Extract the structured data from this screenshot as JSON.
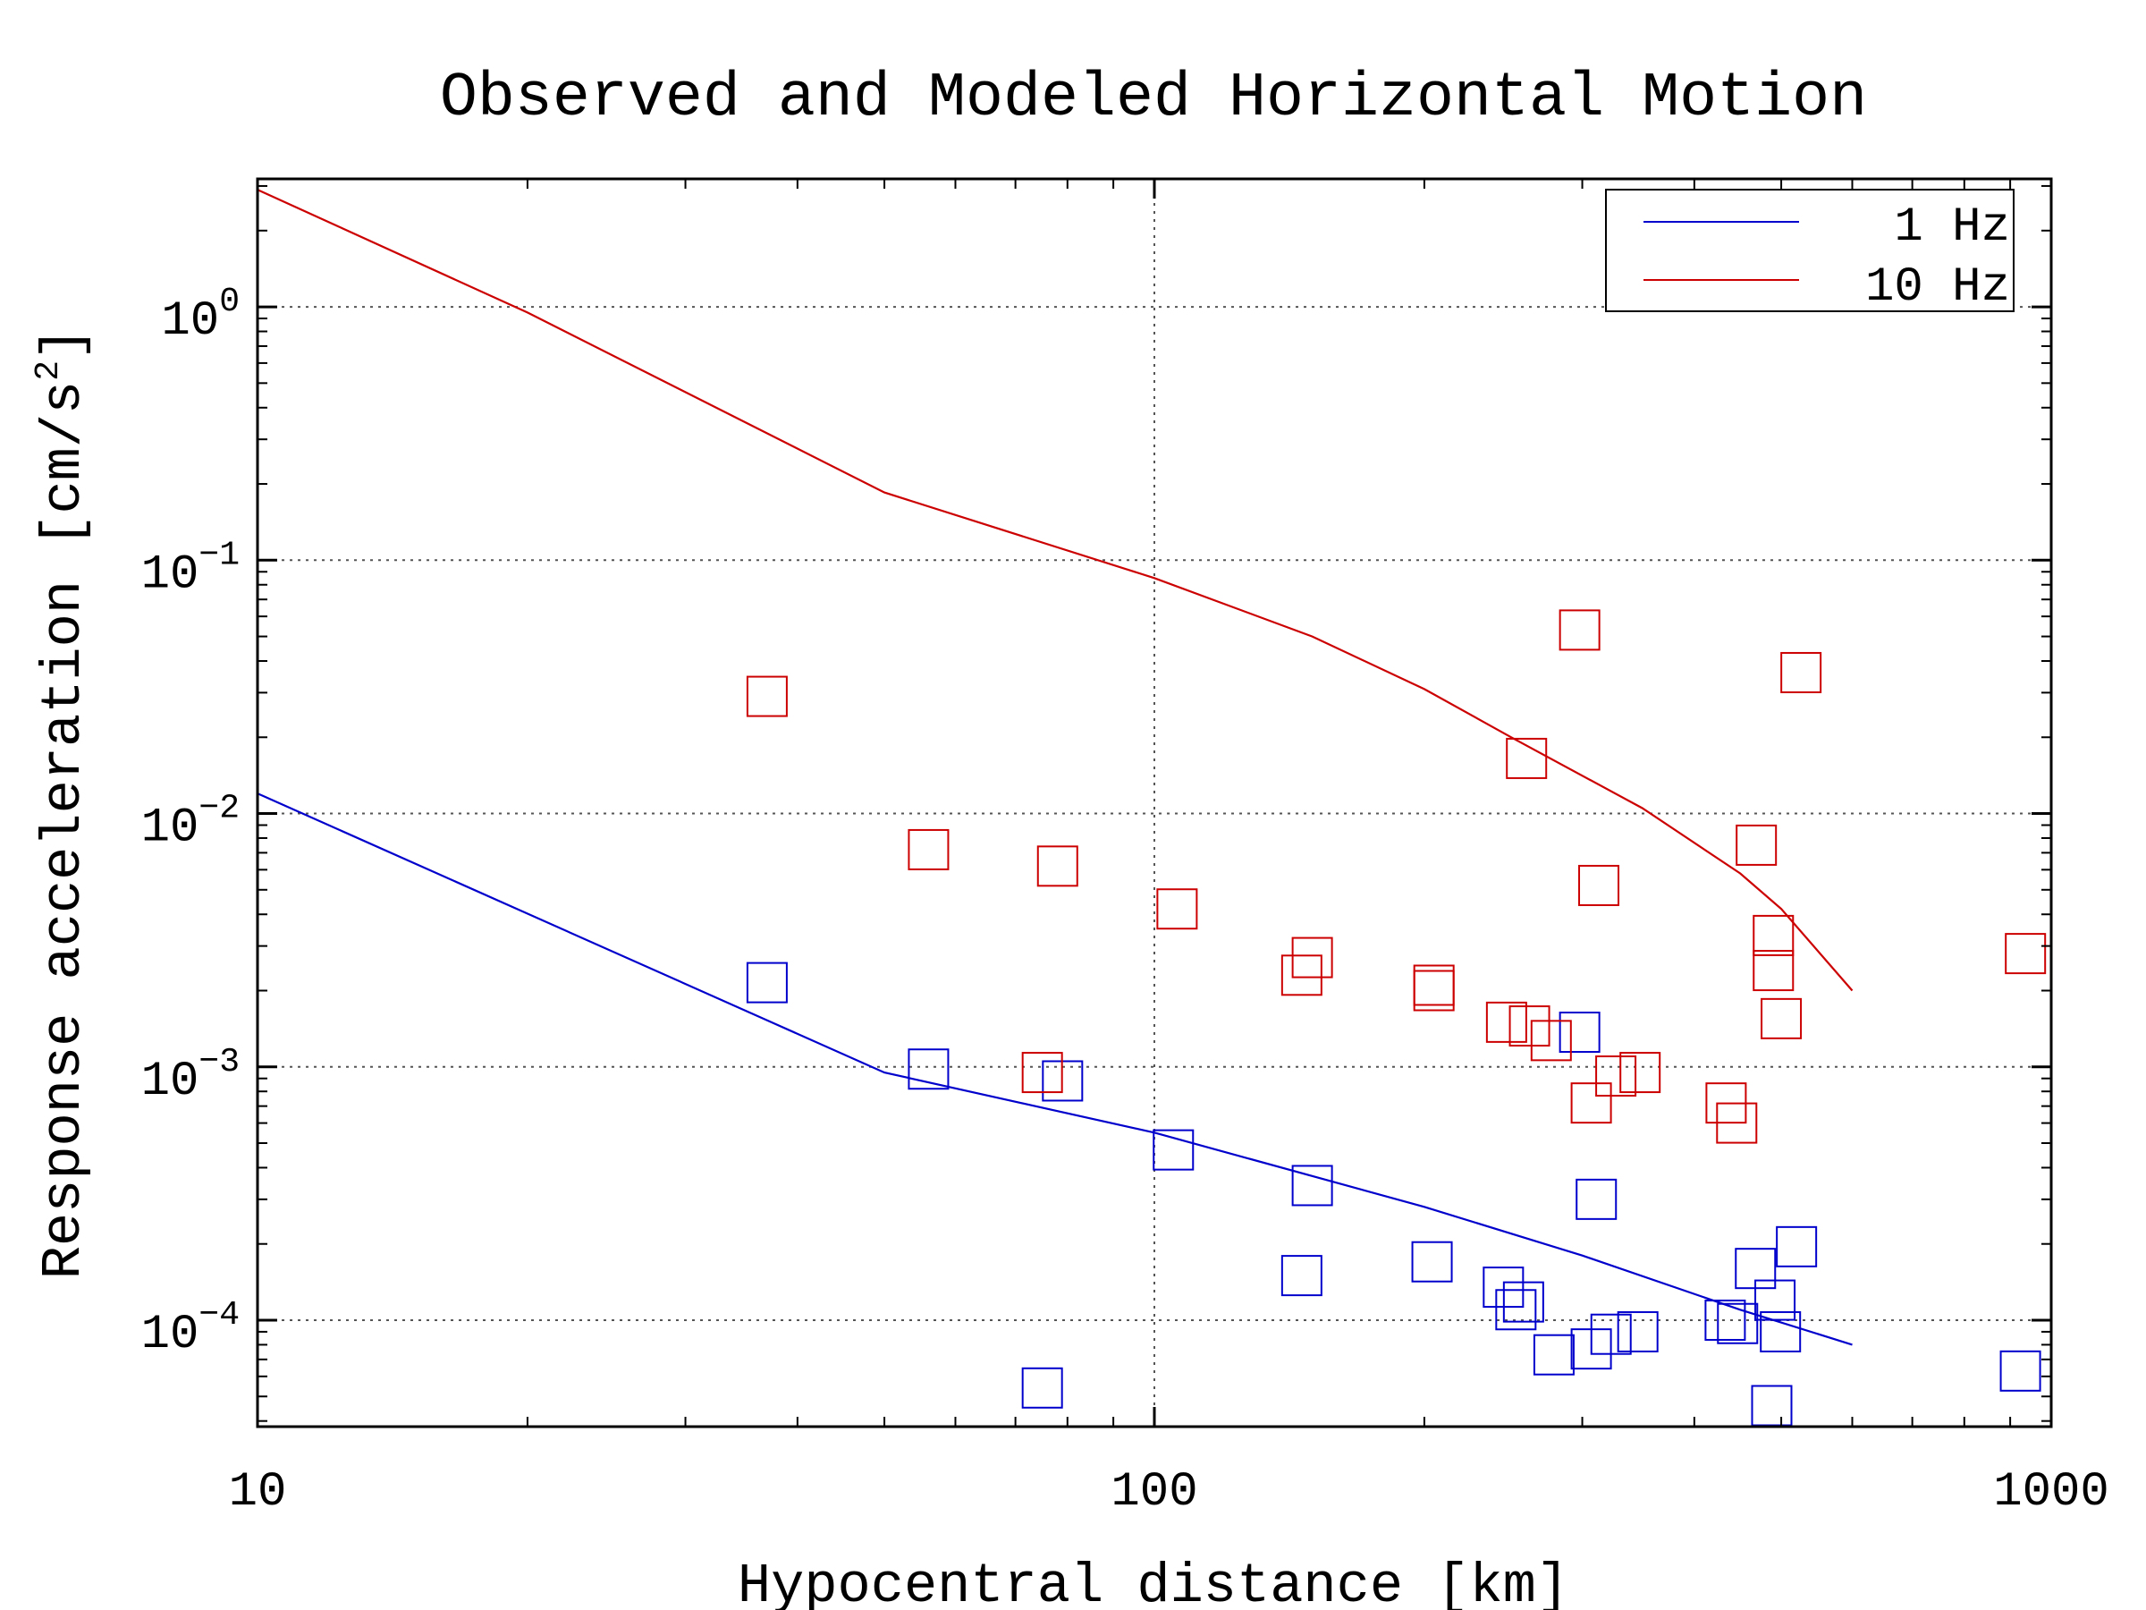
{
  "chart_data": {
    "type": "scatter",
    "title": "Observed and Modeled Horizontal Motion",
    "xlabel": "Hypocentral distance [km]",
    "ylabel": "Response acceleration [cm/s²]",
    "xscale": "log",
    "yscale": "log",
    "xlim": [
      10,
      1000
    ],
    "ylim": [
      3.8e-05,
      3.2
    ],
    "x_ticks": [
      {
        "value": 10,
        "label": "10"
      },
      {
        "value": 100,
        "label": "100"
      },
      {
        "value": 1000,
        "label": "1000"
      }
    ],
    "y_ticks": [
      {
        "value": 1,
        "base": "10",
        "exp": "0"
      },
      {
        "value": 0.1,
        "base": "10",
        "exp": "−1"
      },
      {
        "value": 0.01,
        "base": "10",
        "exp": "−2"
      },
      {
        "value": 0.001,
        "base": "10",
        "exp": "−3"
      },
      {
        "value": 0.0001,
        "base": "10",
        "exp": "−4"
      }
    ],
    "grid": true,
    "legend_position": "top-right",
    "series": [
      {
        "name": "1 Hz",
        "color": "#0000cc",
        "line": [
          [
            10,
            0.012
          ],
          [
            50,
            0.00095
          ],
          [
            100,
            0.00055
          ],
          [
            200,
            0.00028
          ],
          [
            300,
            0.00018
          ],
          [
            450,
            0.00011
          ],
          [
            600,
            8e-05
          ]
        ],
        "points": [
          [
            37,
            0.00215
          ],
          [
            56,
            0.00098
          ],
          [
            79,
            0.00088
          ],
          [
            105,
            0.00047
          ],
          [
            150,
            0.00034
          ],
          [
            146,
            0.00015
          ],
          [
            204,
            0.00017
          ],
          [
            245,
            0.000135
          ],
          [
            253,
            0.00011
          ],
          [
            258,
            0.000118
          ],
          [
            298,
            0.00137
          ],
          [
            311,
            0.0003
          ],
          [
            279,
            7.3e-05
          ],
          [
            307,
            7.7e-05
          ],
          [
            323,
            8.8e-05
          ],
          [
            346,
            9e-05
          ],
          [
            433,
            0.0001
          ],
          [
            447,
            9.7e-05
          ],
          [
            468,
            0.00016
          ],
          [
            492,
            0.00012
          ],
          [
            499,
            9e-05
          ],
          [
            520,
            0.000195
          ],
          [
            488,
            4.6e-05
          ],
          [
            75,
            5.4e-05
          ],
          [
            924,
            6.3e-05
          ]
        ]
      },
      {
        "name": "10 Hz",
        "color": "#cc0000",
        "line": [
          [
            10,
            2.9
          ],
          [
            20,
            0.95
          ],
          [
            50,
            0.185
          ],
          [
            100,
            0.085
          ],
          [
            150,
            0.05
          ],
          [
            200,
            0.031
          ],
          [
            250,
            0.02
          ],
          [
            350,
            0.0105
          ],
          [
            450,
            0.0058
          ],
          [
            500,
            0.0042
          ],
          [
            600,
            0.002
          ]
        ],
        "points": [
          [
            37,
            0.029
          ],
          [
            56,
            0.0072
          ],
          [
            78,
            0.0062
          ],
          [
            75,
            0.00095
          ],
          [
            106,
            0.0042
          ],
          [
            146,
            0.0023
          ],
          [
            150,
            0.0027
          ],
          [
            205,
            0.0021
          ],
          [
            205,
            0.002
          ],
          [
            247,
            0.0015
          ],
          [
            262,
            0.00145
          ],
          [
            277,
            0.00127
          ],
          [
            260,
            0.0165
          ],
          [
            298,
            0.053
          ],
          [
            307,
            0.00072
          ],
          [
            313,
            0.0052
          ],
          [
            327,
            0.00092
          ],
          [
            348,
            0.00095
          ],
          [
            434,
            0.00072
          ],
          [
            446,
            0.0006
          ],
          [
            469,
            0.0075
          ],
          [
            490,
            0.0033
          ],
          [
            490,
            0.0024
          ],
          [
            500,
            0.00155
          ],
          [
            526,
            0.036
          ],
          [
            936,
            0.0028
          ]
        ]
      }
    ]
  }
}
